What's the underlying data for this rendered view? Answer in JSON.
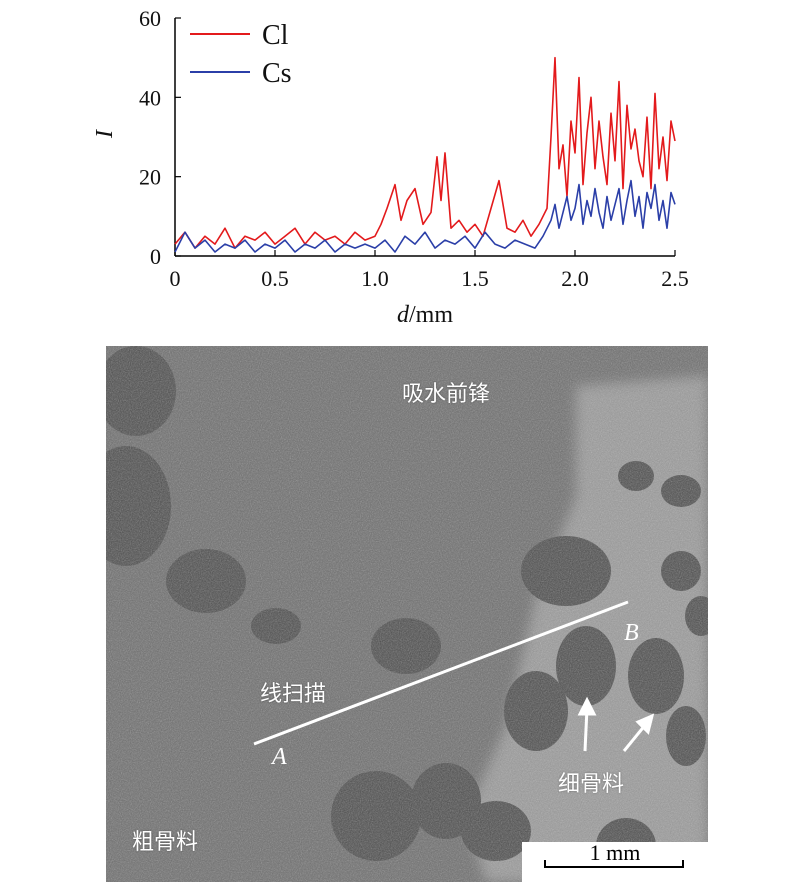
{
  "chart_data": {
    "type": "line",
    "title": "",
    "xlabel": "d/mm",
    "xlabel_italic": "d",
    "xlabel_unit": "/mm",
    "ylabel": "I",
    "xlim": [
      0,
      2.5
    ],
    "ylim": [
      0,
      60
    ],
    "x_ticks": [
      "0",
      "0.5",
      "1.0",
      "1.5",
      "2.0",
      "2.5"
    ],
    "y_ticks": [
      "0",
      "20",
      "40",
      "60"
    ],
    "grid": false,
    "legend_position": "top-left",
    "series": [
      {
        "name": "Cl",
        "color": "#e31a1c",
        "x": [
          0.0,
          0.05,
          0.1,
          0.15,
          0.2,
          0.25,
          0.3,
          0.35,
          0.4,
          0.45,
          0.5,
          0.55,
          0.6,
          0.65,
          0.7,
          0.75,
          0.8,
          0.85,
          0.9,
          0.95,
          1.0,
          1.03,
          1.06,
          1.1,
          1.13,
          1.16,
          1.2,
          1.24,
          1.28,
          1.31,
          1.33,
          1.35,
          1.38,
          1.42,
          1.46,
          1.5,
          1.54,
          1.58,
          1.62,
          1.66,
          1.7,
          1.74,
          1.78,
          1.82,
          1.86,
          1.88,
          1.9,
          1.92,
          1.94,
          1.96,
          1.98,
          2.0,
          2.02,
          2.04,
          2.06,
          2.08,
          2.1,
          2.12,
          2.14,
          2.16,
          2.18,
          2.2,
          2.22,
          2.24,
          2.26,
          2.28,
          2.3,
          2.32,
          2.34,
          2.36,
          2.38,
          2.4,
          2.42,
          2.44,
          2.46,
          2.48,
          2.5
        ],
        "y": [
          3,
          6,
          2,
          5,
          3,
          7,
          2,
          5,
          4,
          6,
          3,
          5,
          7,
          3,
          6,
          4,
          5,
          3,
          6,
          4,
          5,
          8,
          12,
          18,
          9,
          14,
          17,
          8,
          11,
          25,
          14,
          26,
          7,
          9,
          6,
          8,
          5,
          12,
          19,
          7,
          6,
          9,
          5,
          8,
          12,
          30,
          50,
          22,
          28,
          15,
          34,
          26,
          45,
          18,
          31,
          40,
          22,
          34,
          25,
          18,
          36,
          24,
          44,
          17,
          38,
          27,
          32,
          24,
          20,
          35,
          17,
          41,
          22,
          30,
          19,
          34,
          29
        ]
      },
      {
        "name": "Cs",
        "color": "#2b3fa8",
        "x": [
          0.0,
          0.05,
          0.1,
          0.15,
          0.2,
          0.25,
          0.3,
          0.35,
          0.4,
          0.45,
          0.5,
          0.55,
          0.6,
          0.65,
          0.7,
          0.75,
          0.8,
          0.85,
          0.9,
          0.95,
          1.0,
          1.05,
          1.1,
          1.15,
          1.2,
          1.25,
          1.3,
          1.35,
          1.4,
          1.45,
          1.5,
          1.55,
          1.6,
          1.65,
          1.7,
          1.75,
          1.8,
          1.84,
          1.88,
          1.9,
          1.92,
          1.94,
          1.96,
          1.98,
          2.0,
          2.02,
          2.04,
          2.06,
          2.08,
          2.1,
          2.12,
          2.14,
          2.16,
          2.18,
          2.2,
          2.22,
          2.24,
          2.26,
          2.28,
          2.3,
          2.32,
          2.34,
          2.36,
          2.38,
          2.4,
          2.42,
          2.44,
          2.46,
          2.48,
          2.5
        ],
        "y": [
          1,
          6,
          2,
          4,
          1,
          3,
          2,
          4,
          1,
          3,
          2,
          4,
          1,
          3,
          2,
          4,
          1,
          3,
          2,
          3,
          2,
          4,
          1,
          5,
          3,
          6,
          2,
          4,
          3,
          5,
          2,
          6,
          3,
          2,
          4,
          3,
          2,
          5,
          9,
          13,
          7,
          11,
          15,
          9,
          12,
          18,
          8,
          14,
          10,
          17,
          11,
          7,
          15,
          9,
          13,
          17,
          8,
          14,
          19,
          10,
          15,
          7,
          16,
          12,
          18,
          9,
          14,
          7,
          16,
          13
        ]
      }
    ]
  },
  "micrograph": {
    "labels": {
      "absorption_front": "吸水前锋",
      "line_scan": "线扫描",
      "fine_aggregate": "细骨料",
      "coarse_aggregate": "粗骨料"
    },
    "point_a": "A",
    "point_b": "B",
    "scale_bar": "1 mm"
  }
}
